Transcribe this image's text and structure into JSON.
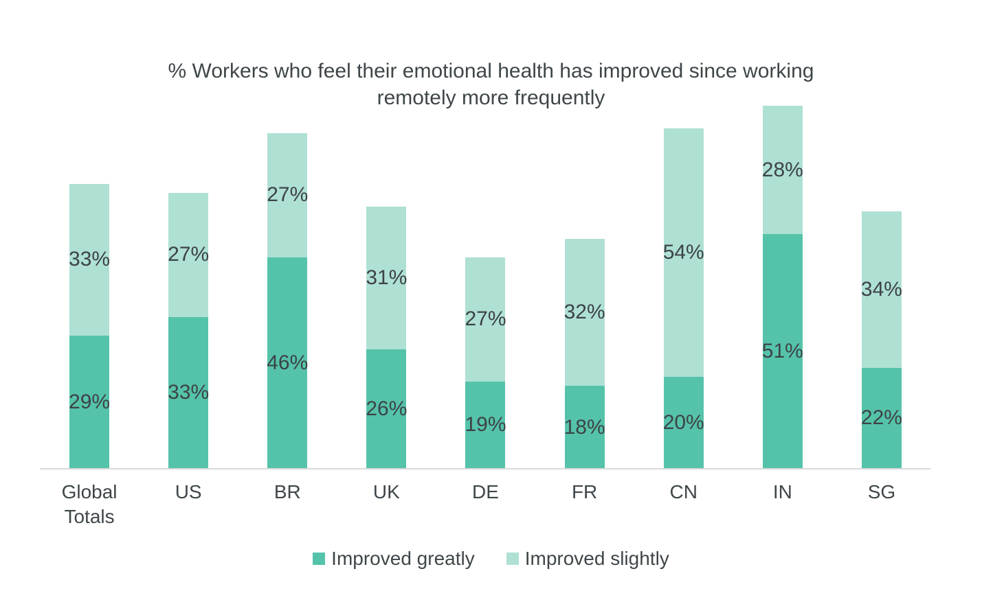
{
  "chart_data": {
    "type": "bar",
    "stacked": true,
    "title": "% Workers who feel their emotional health has improved since working remotely more frequently",
    "title_lines": [
      "% Workers who feel their emotional health has improved since working",
      "remotely more frequently"
    ],
    "categories": [
      "Global Totals",
      "US",
      "BR",
      "UK",
      "DE",
      "FR",
      "CN",
      "IN",
      "SG"
    ],
    "series": [
      {
        "name": "Improved greatly",
        "color": "#55C3A9",
        "values": [
          29,
          33,
          46,
          26,
          19,
          18,
          20,
          51,
          22
        ]
      },
      {
        "name": "Improved slightly",
        "color": "#AFE0D4",
        "values": [
          33,
          27,
          27,
          31,
          27,
          32,
          54,
          28,
          34
        ]
      }
    ],
    "value_suffix": "%",
    "data_labels": true,
    "legend_position": "bottom",
    "grid": false,
    "y_axis_visible": false,
    "axis_line_color": "#D9D9D9",
    "text_color": "#414649",
    "background": "#FFFFFF",
    "ylim_implied_percent": [
      0,
      100
    ]
  }
}
